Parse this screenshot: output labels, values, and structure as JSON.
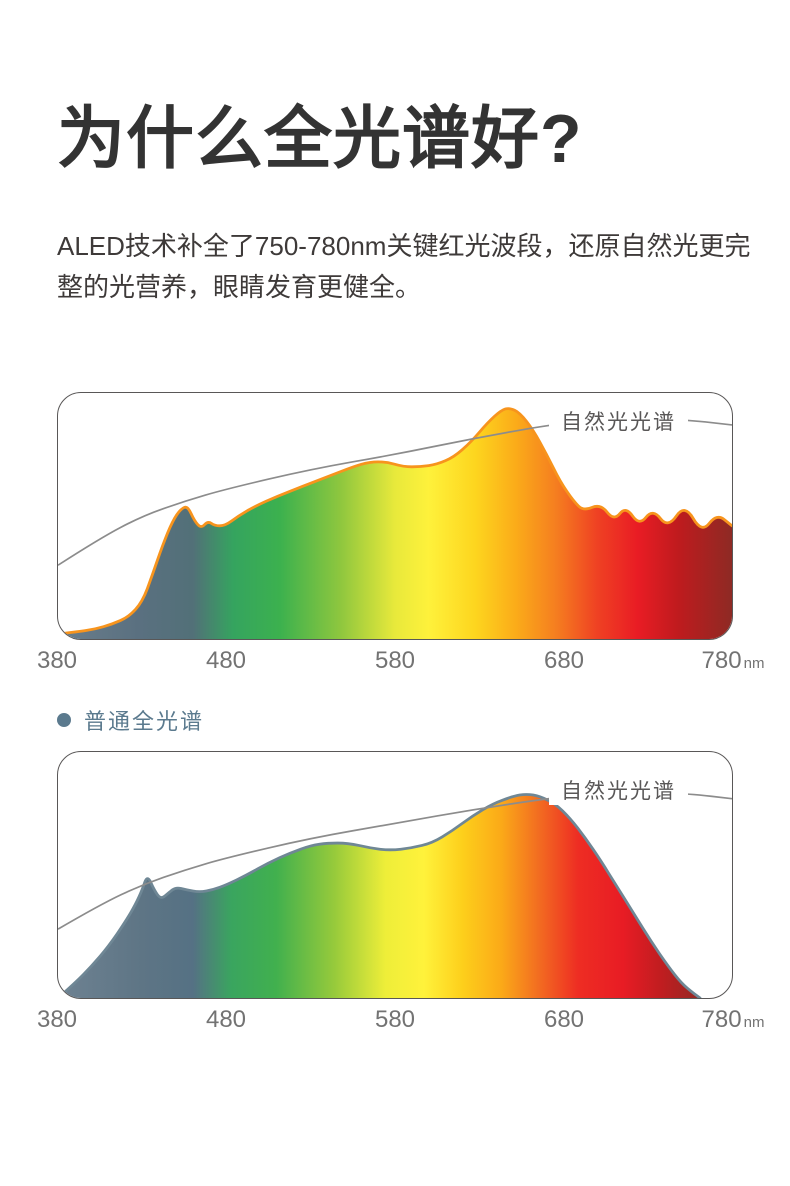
{
  "page": {
    "background": "#ffffff"
  },
  "header": {
    "title": "为什么全光谱好?",
    "description": "ALED技术补全了750-780nm关键红光波段，还原自然光更完整的光营养，眼睛发育更健全。"
  },
  "labels": {
    "natural_light": "自然光光谱"
  },
  "legend": {
    "label": "普通全光谱",
    "dot_color": "#5b7a8e"
  },
  "axis": {
    "ticks": [
      "380",
      "480",
      "580",
      "680",
      "780"
    ],
    "unit": "nm"
  },
  "colors": {
    "title_text": "#333333",
    "body_text": "#3e3a39",
    "axis_text": "#737373",
    "frame_border": "#595757",
    "natural_line": "#8c8c8c",
    "chart1_outline": "#f7941d",
    "chart2_outline": "#6f8795",
    "legend_slate": "#5b7a8e"
  },
  "chart_data": [
    {
      "type": "area",
      "legend_label": "",
      "x_unit": "nm",
      "x_range": [
        380,
        780
      ],
      "x_ticks": [
        "380",
        "480",
        "580",
        "680",
        "780"
      ],
      "ylim": [
        0,
        100
      ],
      "grid": false,
      "outline_color": "#f7941d",
      "gradient": [
        [
          "0%",
          "#6a7e8c"
        ],
        [
          "12%",
          "#5a7080"
        ],
        [
          "20%",
          "#527078"
        ],
        [
          "26%",
          "#35a45f"
        ],
        [
          "33%",
          "#3cb14e"
        ],
        [
          "42%",
          "#8fc73e"
        ],
        [
          "50%",
          "#e8e93b"
        ],
        [
          "55%",
          "#fef13b"
        ],
        [
          "62%",
          "#fdd51e"
        ],
        [
          "68%",
          "#fbab19"
        ],
        [
          "74%",
          "#f57d20"
        ],
        [
          "80%",
          "#ef4123"
        ],
        [
          "86%",
          "#e91c24"
        ],
        [
          "92%",
          "#bf1b1e"
        ],
        [
          "100%",
          "#8e2a24"
        ]
      ],
      "points": [
        [
          380,
          2
        ],
        [
          392,
          3
        ],
        [
          402,
          4
        ],
        [
          412,
          6
        ],
        [
          422,
          9
        ],
        [
          430,
          15
        ],
        [
          436,
          26
        ],
        [
          442,
          38
        ],
        [
          448,
          48
        ],
        [
          453,
          53
        ],
        [
          457,
          54
        ],
        [
          461,
          48
        ],
        [
          465,
          45
        ],
        [
          469,
          48
        ],
        [
          473,
          46
        ],
        [
          479,
          46
        ],
        [
          487,
          50
        ],
        [
          497,
          54
        ],
        [
          510,
          58
        ],
        [
          525,
          62
        ],
        [
          540,
          66
        ],
        [
          555,
          70
        ],
        [
          565,
          72
        ],
        [
          575,
          72
        ],
        [
          585,
          70
        ],
        [
          595,
          70
        ],
        [
          605,
          71
        ],
        [
          615,
          74
        ],
        [
          625,
          80
        ],
        [
          635,
          88
        ],
        [
          643,
          93
        ],
        [
          648,
          94
        ],
        [
          654,
          92
        ],
        [
          662,
          85
        ],
        [
          670,
          75
        ],
        [
          678,
          64
        ],
        [
          686,
          56
        ],
        [
          692,
          52
        ],
        [
          702,
          55
        ],
        [
          710,
          48
        ],
        [
          717,
          54
        ],
        [
          725,
          46
        ],
        [
          733,
          53
        ],
        [
          742,
          45
        ],
        [
          752,
          55
        ],
        [
          762,
          43
        ],
        [
          771,
          51
        ],
        [
          780,
          46
        ]
      ],
      "reference_curve": {
        "label": "自然光光谱",
        "color": "#8c8c8c",
        "points": [
          [
            380,
            30
          ],
          [
            405,
            41
          ],
          [
            430,
            50
          ],
          [
            455,
            56
          ],
          [
            480,
            61
          ],
          [
            530,
            69
          ],
          [
            580,
            75
          ],
          [
            630,
            82
          ],
          [
            680,
            88
          ],
          [
            720,
            90
          ],
          [
            755,
            89
          ],
          [
            780,
            87
          ]
        ]
      }
    },
    {
      "type": "area",
      "legend_label": "普通全光谱",
      "x_unit": "nm",
      "x_range": [
        380,
        780
      ],
      "x_ticks": [
        "380",
        "480",
        "580",
        "680",
        "780"
      ],
      "ylim": [
        0,
        100
      ],
      "grid": false,
      "outline_color": "#6f8795",
      "gradient": [
        [
          "0%",
          "#6e8292"
        ],
        [
          "13%",
          "#5e7585"
        ],
        [
          "21%",
          "#557184"
        ],
        [
          "27%",
          "#3aa55f"
        ],
        [
          "34%",
          "#41b04e"
        ],
        [
          "43%",
          "#96ca3b"
        ],
        [
          "51%",
          "#eeee39"
        ],
        [
          "57%",
          "#fff23b"
        ],
        [
          "63%",
          "#fdcf1b"
        ],
        [
          "69%",
          "#fbaa18"
        ],
        [
          "75%",
          "#f26b21"
        ],
        [
          "81%",
          "#ee2d23"
        ],
        [
          "88%",
          "#e81c24"
        ],
        [
          "94%",
          "#c01d20"
        ],
        [
          "100%",
          "#942823"
        ]
      ],
      "points": [
        [
          380,
          0
        ],
        [
          390,
          6
        ],
        [
          400,
          13
        ],
        [
          410,
          21
        ],
        [
          420,
          31
        ],
        [
          426,
          38
        ],
        [
          430,
          44
        ],
        [
          433,
          50
        ],
        [
          437,
          44
        ],
        [
          441,
          40
        ],
        [
          446,
          43
        ],
        [
          450,
          45
        ],
        [
          456,
          44
        ],
        [
          464,
          43
        ],
        [
          472,
          44
        ],
        [
          480,
          46
        ],
        [
          492,
          50
        ],
        [
          505,
          55
        ],
        [
          518,
          59
        ],
        [
          530,
          62
        ],
        [
          540,
          63
        ],
        [
          552,
          63
        ],
        [
          565,
          61
        ],
        [
          577,
          60
        ],
        [
          590,
          61
        ],
        [
          602,
          63
        ],
        [
          614,
          68
        ],
        [
          626,
          74
        ],
        [
          638,
          79
        ],
        [
          650,
          82
        ],
        [
          658,
          83
        ],
        [
          666,
          82
        ],
        [
          675,
          79
        ],
        [
          684,
          73
        ],
        [
          693,
          65
        ],
        [
          702,
          56
        ],
        [
          712,
          45
        ],
        [
          722,
          34
        ],
        [
          732,
          23
        ],
        [
          742,
          13
        ],
        [
          750,
          6
        ],
        [
          757,
          2
        ],
        [
          761,
          0
        ]
      ],
      "reference_curve": {
        "label": "自然光光谱",
        "color": "#8c8c8c",
        "points": [
          [
            380,
            28
          ],
          [
            405,
            38
          ],
          [
            430,
            46
          ],
          [
            455,
            52
          ],
          [
            480,
            57
          ],
          [
            530,
            65
          ],
          [
            580,
            71
          ],
          [
            630,
            77
          ],
          [
            680,
            82
          ],
          [
            720,
            84
          ],
          [
            755,
            83
          ],
          [
            780,
            81
          ]
        ]
      }
    }
  ]
}
